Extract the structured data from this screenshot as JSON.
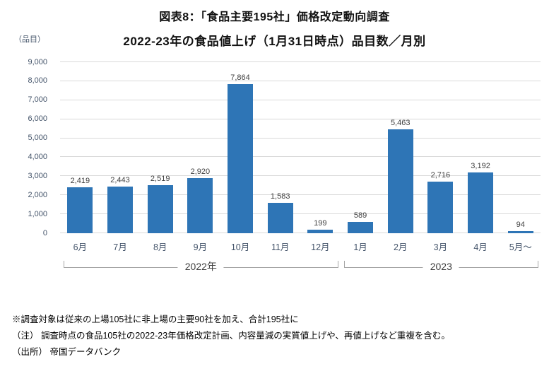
{
  "header": {
    "title_line1": "図表8：「食品主要195社」価格改定動向調査",
    "title_line2": "2022-23年の食品値上げ（1月31日時点）品目数／月別",
    "y_axis_unit": "（品目）"
  },
  "chart_data": {
    "type": "bar",
    "title": "図表8：「食品主要195社」価格改定動向調査 2022-23年の食品値上げ（1月31日時点）品目数／月別",
    "categories": [
      "6月",
      "7月",
      "8月",
      "9月",
      "10月",
      "11月",
      "12月",
      "1月",
      "2月",
      "3月",
      "4月",
      "5月～"
    ],
    "values": [
      2419,
      2443,
      2519,
      2920,
      7864,
      1583,
      199,
      589,
      5463,
      2716,
      3192,
      94
    ],
    "value_labels": [
      "2,419",
      "2,443",
      "2,519",
      "2,920",
      "7,864",
      "1,583",
      "199",
      "589",
      "5,463",
      "2,716",
      "3,192",
      "94"
    ],
    "year_groups": [
      {
        "label": "2022年",
        "start": 0,
        "end": 6
      },
      {
        "label": "2023",
        "start": 7,
        "end": 11
      }
    ],
    "xlabel": "",
    "ylabel": "（品目）",
    "ylim": [
      0,
      9000
    ],
    "ytick_step": 1000,
    "ytick_labels": [
      "0",
      "1,000",
      "2,000",
      "3,000",
      "4,000",
      "5,000",
      "6,000",
      "7,000",
      "8,000",
      "9,000"
    ],
    "grid": true,
    "legend": "none"
  },
  "colors": {
    "bar": "#2E75B6",
    "grid": "#D9D9D9",
    "axis_text": "#44546A",
    "value_label_text": "#404040",
    "bracket": "#A6A6A6",
    "title_text": "#111111"
  },
  "footnotes": [
    "※調査対象は従来の上場105社に非上場の主要90社を加え、合計195社に",
    "（注） 調査時点の食品105社の2022-23年価格改定計画、内容量減の実質値上げや、再値上げなど重複を含む。",
    "（出所） 帝国データバンク"
  ]
}
